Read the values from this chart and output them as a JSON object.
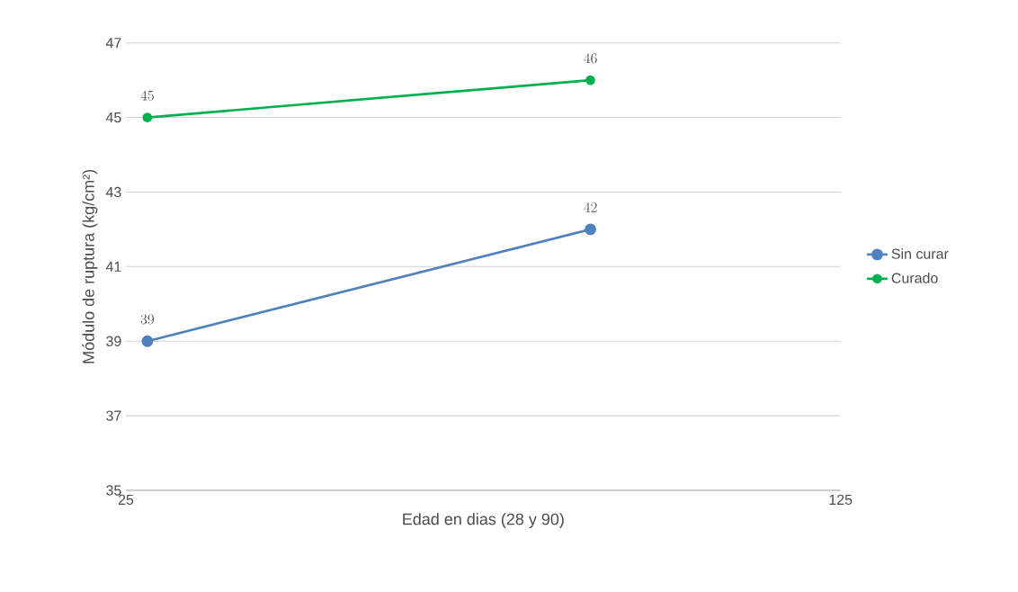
{
  "chart_data": {
    "type": "line",
    "xlabel": "Edad en dias (28 y 90)",
    "ylabel": "Módulo de ruptura (kg/cm²)",
    "x": [
      28,
      90
    ],
    "series": [
      {
        "name": "Sin curar",
        "color": "#4f81bd",
        "values": [
          39,
          42
        ]
      },
      {
        "name": "Curado",
        "color": "#00b050",
        "values": [
          45,
          46
        ]
      }
    ],
    "xlim": [
      25,
      125
    ],
    "xticks": [
      25,
      125
    ],
    "ylim": [
      35,
      47
    ],
    "yticks": [
      35,
      37,
      39,
      41,
      43,
      45,
      47
    ],
    "grid": "y",
    "legend": "right",
    "marker": "circle",
    "data_labels": true
  }
}
